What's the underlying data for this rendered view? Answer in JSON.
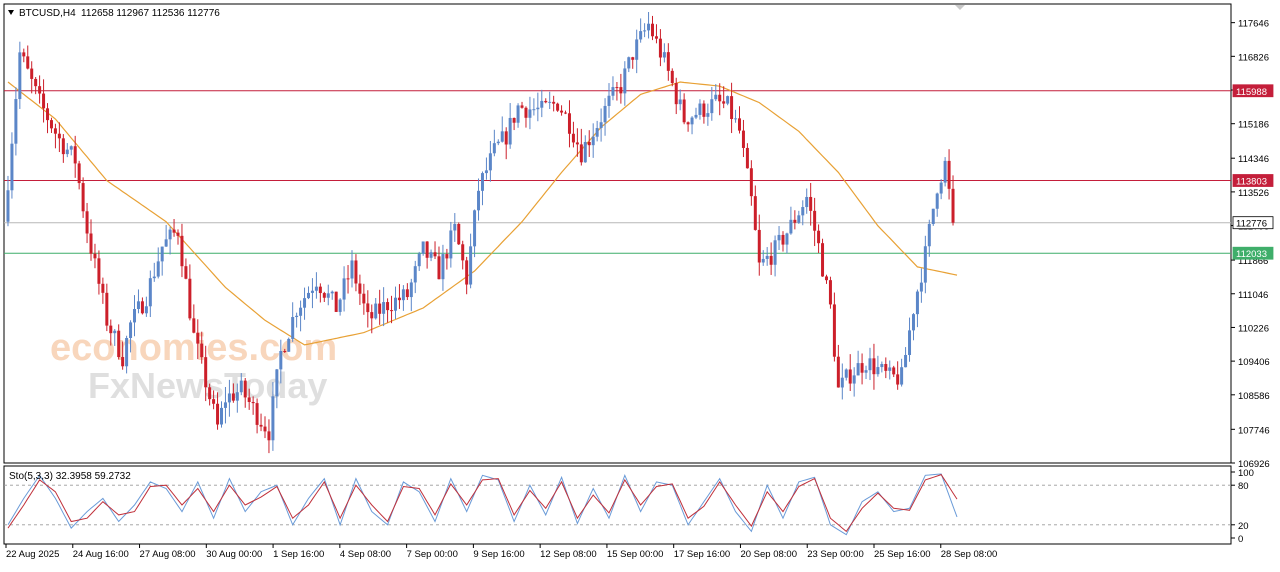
{
  "header": {
    "symbol": "BTCUSD,H4",
    "ohlc": "112658 112967 112536 112776"
  },
  "watermark": {
    "brand_top": "economies.com",
    "brand_bottom": "FxNewsToday"
  },
  "indicator": {
    "label": "Sto(5,3,3) 32.3958 59.2732"
  },
  "colors": {
    "bull": "#5b86c8",
    "bear": "#cc1f2a",
    "ma": "#e8a135",
    "res_line": "#c41e3a",
    "sup_line": "#3fae6a",
    "current_line": "#b7b7b7",
    "k_line": "#6a9bd8",
    "d_line": "#c0303a"
  },
  "chart_data": {
    "type": "candlestick",
    "symbol": "BTCUSD",
    "timeframe": "H4",
    "ylim": [
      106926,
      118100
    ],
    "price_ticks": [
      "117646",
      "116826",
      "116006",
      "115186",
      "114346",
      "113526",
      "112706",
      "111866",
      "111046",
      "110226",
      "109406",
      "108586",
      "107746",
      "106926"
    ],
    "level_labels": [
      {
        "label": "115988",
        "value": 115988,
        "kind": "resistance"
      },
      {
        "label": "113803",
        "value": 113803,
        "kind": "resistance"
      },
      {
        "label": "112776",
        "value": 112776,
        "kind": "current"
      },
      {
        "label": "112033",
        "value": 112033,
        "kind": "support"
      }
    ],
    "x_ticks": [
      "22 Aug 2025",
      "24 Aug 16:00",
      "27 Aug 08:00",
      "30 Aug 00:00",
      "1 Sep 16:00",
      "4 Sep 08:00",
      "7 Sep 00:00",
      "9 Sep 16:00",
      "12 Sep 08:00",
      "15 Sep 00:00",
      "17 Sep 16:00",
      "20 Sep 08:00",
      "23 Sep 00:00",
      "25 Sep 16:00",
      "28 Sep 08:00"
    ],
    "price_path": [
      [
        0,
        112800
      ],
      [
        4,
        116900
      ],
      [
        9,
        115700
      ],
      [
        14,
        114800
      ],
      [
        18,
        114300
      ],
      [
        21,
        112600
      ],
      [
        26,
        110400
      ],
      [
        30,
        109500
      ],
      [
        32,
        110300
      ],
      [
        36,
        111000
      ],
      [
        40,
        112200
      ],
      [
        44,
        112600
      ],
      [
        48,
        110000
      ],
      [
        54,
        107800
      ],
      [
        56,
        108500
      ],
      [
        60,
        108700
      ],
      [
        64,
        108100
      ],
      [
        67,
        107700
      ],
      [
        70,
        109600
      ],
      [
        74,
        110700
      ],
      [
        79,
        111400
      ],
      [
        84,
        110700
      ],
      [
        88,
        111700
      ],
      [
        92,
        110400
      ],
      [
        97,
        110800
      ],
      [
        102,
        111000
      ],
      [
        106,
        112100
      ],
      [
        110,
        111600
      ],
      [
        114,
        112600
      ],
      [
        117,
        111400
      ],
      [
        120,
        113600
      ],
      [
        124,
        114500
      ],
      [
        127,
        114900
      ],
      [
        130,
        115600
      ],
      [
        136,
        115500
      ],
      [
        140,
        115700
      ],
      [
        143,
        115200
      ],
      [
        146,
        114500
      ],
      [
        149,
        115000
      ],
      [
        153,
        115700
      ],
      [
        156,
        116100
      ],
      [
        159,
        116900
      ],
      [
        163,
        117600
      ],
      [
        167,
        116700
      ],
      [
        172,
        115300
      ],
      [
        176,
        115500
      ],
      [
        180,
        115700
      ],
      [
        183,
        115600
      ],
      [
        186,
        115000
      ],
      [
        189,
        113300
      ],
      [
        191,
        111700
      ],
      [
        195,
        112100
      ],
      [
        199,
        112700
      ],
      [
        203,
        113400
      ],
      [
        206,
        112200
      ],
      [
        209,
        110700
      ],
      [
        211,
        108700
      ],
      [
        214,
        109100
      ],
      [
        218,
        109400
      ],
      [
        221,
        109200
      ],
      [
        224,
        109000
      ],
      [
        227,
        109000
      ],
      [
        230,
        110700
      ],
      [
        233,
        112000
      ],
      [
        236,
        113700
      ],
      [
        238,
        114200
      ],
      [
        240,
        112776
      ]
    ],
    "ma_path": [
      [
        0,
        116200
      ],
      [
        12,
        115300
      ],
      [
        25,
        113800
      ],
      [
        40,
        112800
      ],
      [
        55,
        111200
      ],
      [
        65,
        110400
      ],
      [
        75,
        109800
      ],
      [
        90,
        110100
      ],
      [
        105,
        110700
      ],
      [
        118,
        111600
      ],
      [
        130,
        112800
      ],
      [
        140,
        114000
      ],
      [
        150,
        115100
      ],
      [
        160,
        115900
      ],
      [
        170,
        116200
      ],
      [
        180,
        116100
      ],
      [
        190,
        115700
      ],
      [
        200,
        115000
      ],
      [
        210,
        114000
      ],
      [
        220,
        112700
      ],
      [
        230,
        111700
      ],
      [
        240,
        111500
      ]
    ],
    "stoch": {
      "name": "Sto(5,3,3)",
      "k": 32.3958,
      "d": 59.2732,
      "levels": [
        80,
        20
      ],
      "axis_ticks": [
        "100",
        "80",
        "20",
        "0"
      ],
      "k_path": [
        [
          0,
          20
        ],
        [
          4,
          60
        ],
        [
          8,
          95
        ],
        [
          12,
          60
        ],
        [
          16,
          15
        ],
        [
          20,
          40
        ],
        [
          24,
          60
        ],
        [
          28,
          25
        ],
        [
          32,
          50
        ],
        [
          36,
          85
        ],
        [
          40,
          75
        ],
        [
          44,
          40
        ],
        [
          48,
          85
        ],
        [
          52,
          30
        ],
        [
          56,
          90
        ],
        [
          60,
          40
        ],
        [
          64,
          70
        ],
        [
          68,
          80
        ],
        [
          72,
          20
        ],
        [
          76,
          60
        ],
        [
          80,
          90
        ],
        [
          84,
          20
        ],
        [
          88,
          90
        ],
        [
          92,
          40
        ],
        [
          96,
          20
        ],
        [
          100,
          85
        ],
        [
          104,
          70
        ],
        [
          108,
          25
        ],
        [
          112,
          90
        ],
        [
          116,
          40
        ],
        [
          120,
          95
        ],
        [
          124,
          88
        ],
        [
          128,
          25
        ],
        [
          132,
          80
        ],
        [
          136,
          35
        ],
        [
          140,
          92
        ],
        [
          144,
          22
        ],
        [
          148,
          75
        ],
        [
          152,
          30
        ],
        [
          156,
          95
        ],
        [
          160,
          40
        ],
        [
          164,
          85
        ],
        [
          168,
          80
        ],
        [
          172,
          20
        ],
        [
          176,
          55
        ],
        [
          180,
          90
        ],
        [
          184,
          40
        ],
        [
          188,
          10
        ],
        [
          192,
          80
        ],
        [
          196,
          30
        ],
        [
          200,
          85
        ],
        [
          204,
          92
        ],
        [
          208,
          20
        ],
        [
          212,
          5
        ],
        [
          216,
          55
        ],
        [
          220,
          70
        ],
        [
          224,
          40
        ],
        [
          228,
          45
        ],
        [
          232,
          95
        ],
        [
          236,
          97
        ],
        [
          240,
          32
        ]
      ],
      "d_path": [
        [
          0,
          15
        ],
        [
          4,
          50
        ],
        [
          8,
          88
        ],
        [
          12,
          70
        ],
        [
          16,
          25
        ],
        [
          20,
          30
        ],
        [
          24,
          55
        ],
        [
          28,
          35
        ],
        [
          32,
          40
        ],
        [
          36,
          78
        ],
        [
          40,
          80
        ],
        [
          44,
          50
        ],
        [
          48,
          75
        ],
        [
          52,
          40
        ],
        [
          56,
          80
        ],
        [
          60,
          50
        ],
        [
          64,
          62
        ],
        [
          68,
          78
        ],
        [
          72,
          30
        ],
        [
          76,
          50
        ],
        [
          80,
          85
        ],
        [
          84,
          30
        ],
        [
          88,
          80
        ],
        [
          92,
          50
        ],
        [
          96,
          25
        ],
        [
          100,
          78
        ],
        [
          104,
          75
        ],
        [
          108,
          35
        ],
        [
          112,
          82
        ],
        [
          116,
          50
        ],
        [
          120,
          88
        ],
        [
          124,
          90
        ],
        [
          128,
          35
        ],
        [
          132,
          72
        ],
        [
          136,
          45
        ],
        [
          140,
          85
        ],
        [
          144,
          30
        ],
        [
          148,
          65
        ],
        [
          152,
          38
        ],
        [
          156,
          88
        ],
        [
          160,
          50
        ],
        [
          164,
          78
        ],
        [
          168,
          82
        ],
        [
          172,
          30
        ],
        [
          176,
          48
        ],
        [
          180,
          85
        ],
        [
          184,
          50
        ],
        [
          188,
          18
        ],
        [
          192,
          70
        ],
        [
          196,
          40
        ],
        [
          200,
          78
        ],
        [
          204,
          90
        ],
        [
          208,
          30
        ],
        [
          212,
          10
        ],
        [
          216,
          45
        ],
        [
          220,
          68
        ],
        [
          224,
          45
        ],
        [
          228,
          42
        ],
        [
          232,
          88
        ],
        [
          236,
          96
        ],
        [
          240,
          59
        ]
      ]
    }
  }
}
